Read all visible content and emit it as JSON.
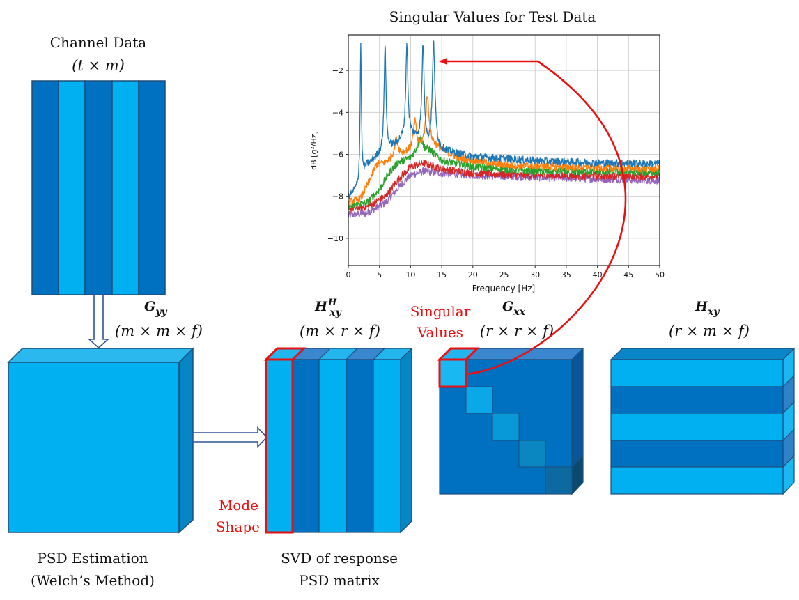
{
  "labels": {
    "channel_title": "Channel Data",
    "channel_dims": "(t × m)",
    "gyy_symbol": "G",
    "gyy_sub": "yy",
    "gyy_dims": "(m × m × f)",
    "hxyh_symbol": "H",
    "hxyh_sub": "xy",
    "hxyh_sup": "H",
    "hxyh_dims": "(m × r × f)",
    "gxx_symbol": "G",
    "gxx_sub": "xx",
    "gxx_dims": "(r × r × f)",
    "hxy_symbol": "H",
    "hxy_sub": "xy",
    "hxy_dims": "(r × m × f)",
    "singular_values_line1": "Singular",
    "singular_values_line2": "Values",
    "mode_shape_line1": "Mode",
    "mode_shape_line2": "Shape",
    "psd_line1": "PSD Estimation",
    "psd_line2": "(Welch’s Method)",
    "svd_line1": "SVD of response",
    "svd_line2": "PSD matrix"
  },
  "colors": {
    "dark_blue": "#0070c0",
    "light_blue": "#00b0f0",
    "highlight_red": "#e81010"
  },
  "chart_data": {
    "type": "line",
    "title": "Singular Values for Test Data",
    "xlabel": "Frequency [Hz]",
    "ylabel": "dB [g²/Hz]",
    "xlim": [
      0,
      50
    ],
    "ylim": [
      -11.3,
      -0.3
    ],
    "xticks": [
      0,
      5,
      10,
      15,
      20,
      25,
      30,
      35,
      40,
      45,
      50
    ],
    "yticks": [
      -10,
      -8,
      -6,
      -4,
      -2
    ],
    "grid": true,
    "series": [
      {
        "color": "#1f77b4",
        "peaks": [
          {
            "x": 2.0,
            "y": -0.7,
            "w": 0.12
          },
          {
            "x": 5.9,
            "y": -0.7,
            "w": 0.18
          },
          {
            "x": 9.4,
            "y": -0.7,
            "w": 0.2
          },
          {
            "x": 12.0,
            "y": -0.7,
            "w": 0.22
          },
          {
            "x": 13.7,
            "y": -0.7,
            "w": 0.25
          }
        ],
        "baseline": [
          [
            0,
            -8.0
          ],
          [
            1.5,
            -7.6
          ],
          [
            3,
            -6.5
          ],
          [
            5,
            -6.0
          ],
          [
            8,
            -5.4
          ],
          [
            10,
            -5.0
          ],
          [
            12,
            -5.3
          ],
          [
            15,
            -5.8
          ],
          [
            20,
            -6.1
          ],
          [
            30,
            -6.3
          ],
          [
            40,
            -6.4
          ],
          [
            50,
            -6.45
          ]
        ]
      },
      {
        "color": "#ff7f0e",
        "peaks": [
          {
            "x": 7.7,
            "y": -5.3,
            "w": 0.35
          },
          {
            "x": 10.7,
            "y": -4.4,
            "w": 0.3
          },
          {
            "x": 12.7,
            "y": -3.2,
            "w": 0.3
          }
        ],
        "baseline": [
          [
            0,
            -8.3
          ],
          [
            2,
            -8.1
          ],
          [
            3.5,
            -7.2
          ],
          [
            4.5,
            -6.5
          ],
          [
            6,
            -6.4
          ],
          [
            8,
            -6.0
          ],
          [
            10,
            -5.8
          ],
          [
            13,
            -5.4
          ],
          [
            15,
            -5.8
          ],
          [
            18,
            -6.2
          ],
          [
            25,
            -6.5
          ],
          [
            35,
            -6.6
          ],
          [
            50,
            -6.7
          ]
        ]
      },
      {
        "color": "#2ca02c",
        "peaks": [
          {
            "x": 11.6,
            "y": -5.2,
            "w": 0.45
          }
        ],
        "baseline": [
          [
            0,
            -8.5
          ],
          [
            3,
            -8.3
          ],
          [
            5,
            -7.7
          ],
          [
            6.5,
            -6.9
          ],
          [
            8,
            -6.4
          ],
          [
            10,
            -6.2
          ],
          [
            11,
            -5.9
          ],
          [
            13,
            -5.8
          ],
          [
            15,
            -6.3
          ],
          [
            20,
            -6.6
          ],
          [
            30,
            -6.8
          ],
          [
            50,
            -6.85
          ]
        ]
      },
      {
        "color": "#d62728",
        "peaks": [],
        "baseline": [
          [
            0,
            -8.6
          ],
          [
            3,
            -8.5
          ],
          [
            6,
            -8.0
          ],
          [
            8,
            -7.2
          ],
          [
            10,
            -6.6
          ],
          [
            12,
            -6.4
          ],
          [
            15,
            -6.7
          ],
          [
            20,
            -6.9
          ],
          [
            30,
            -7.0
          ],
          [
            50,
            -7.05
          ]
        ]
      },
      {
        "color": "#9467bd",
        "peaks": [],
        "baseline": [
          [
            0,
            -8.9
          ],
          [
            3,
            -8.8
          ],
          [
            6,
            -8.3
          ],
          [
            8,
            -7.6
          ],
          [
            10,
            -7.0
          ],
          [
            12,
            -6.8
          ],
          [
            15,
            -6.9
          ],
          [
            20,
            -7.0
          ],
          [
            30,
            -7.1
          ],
          [
            50,
            -7.25
          ]
        ]
      }
    ]
  }
}
